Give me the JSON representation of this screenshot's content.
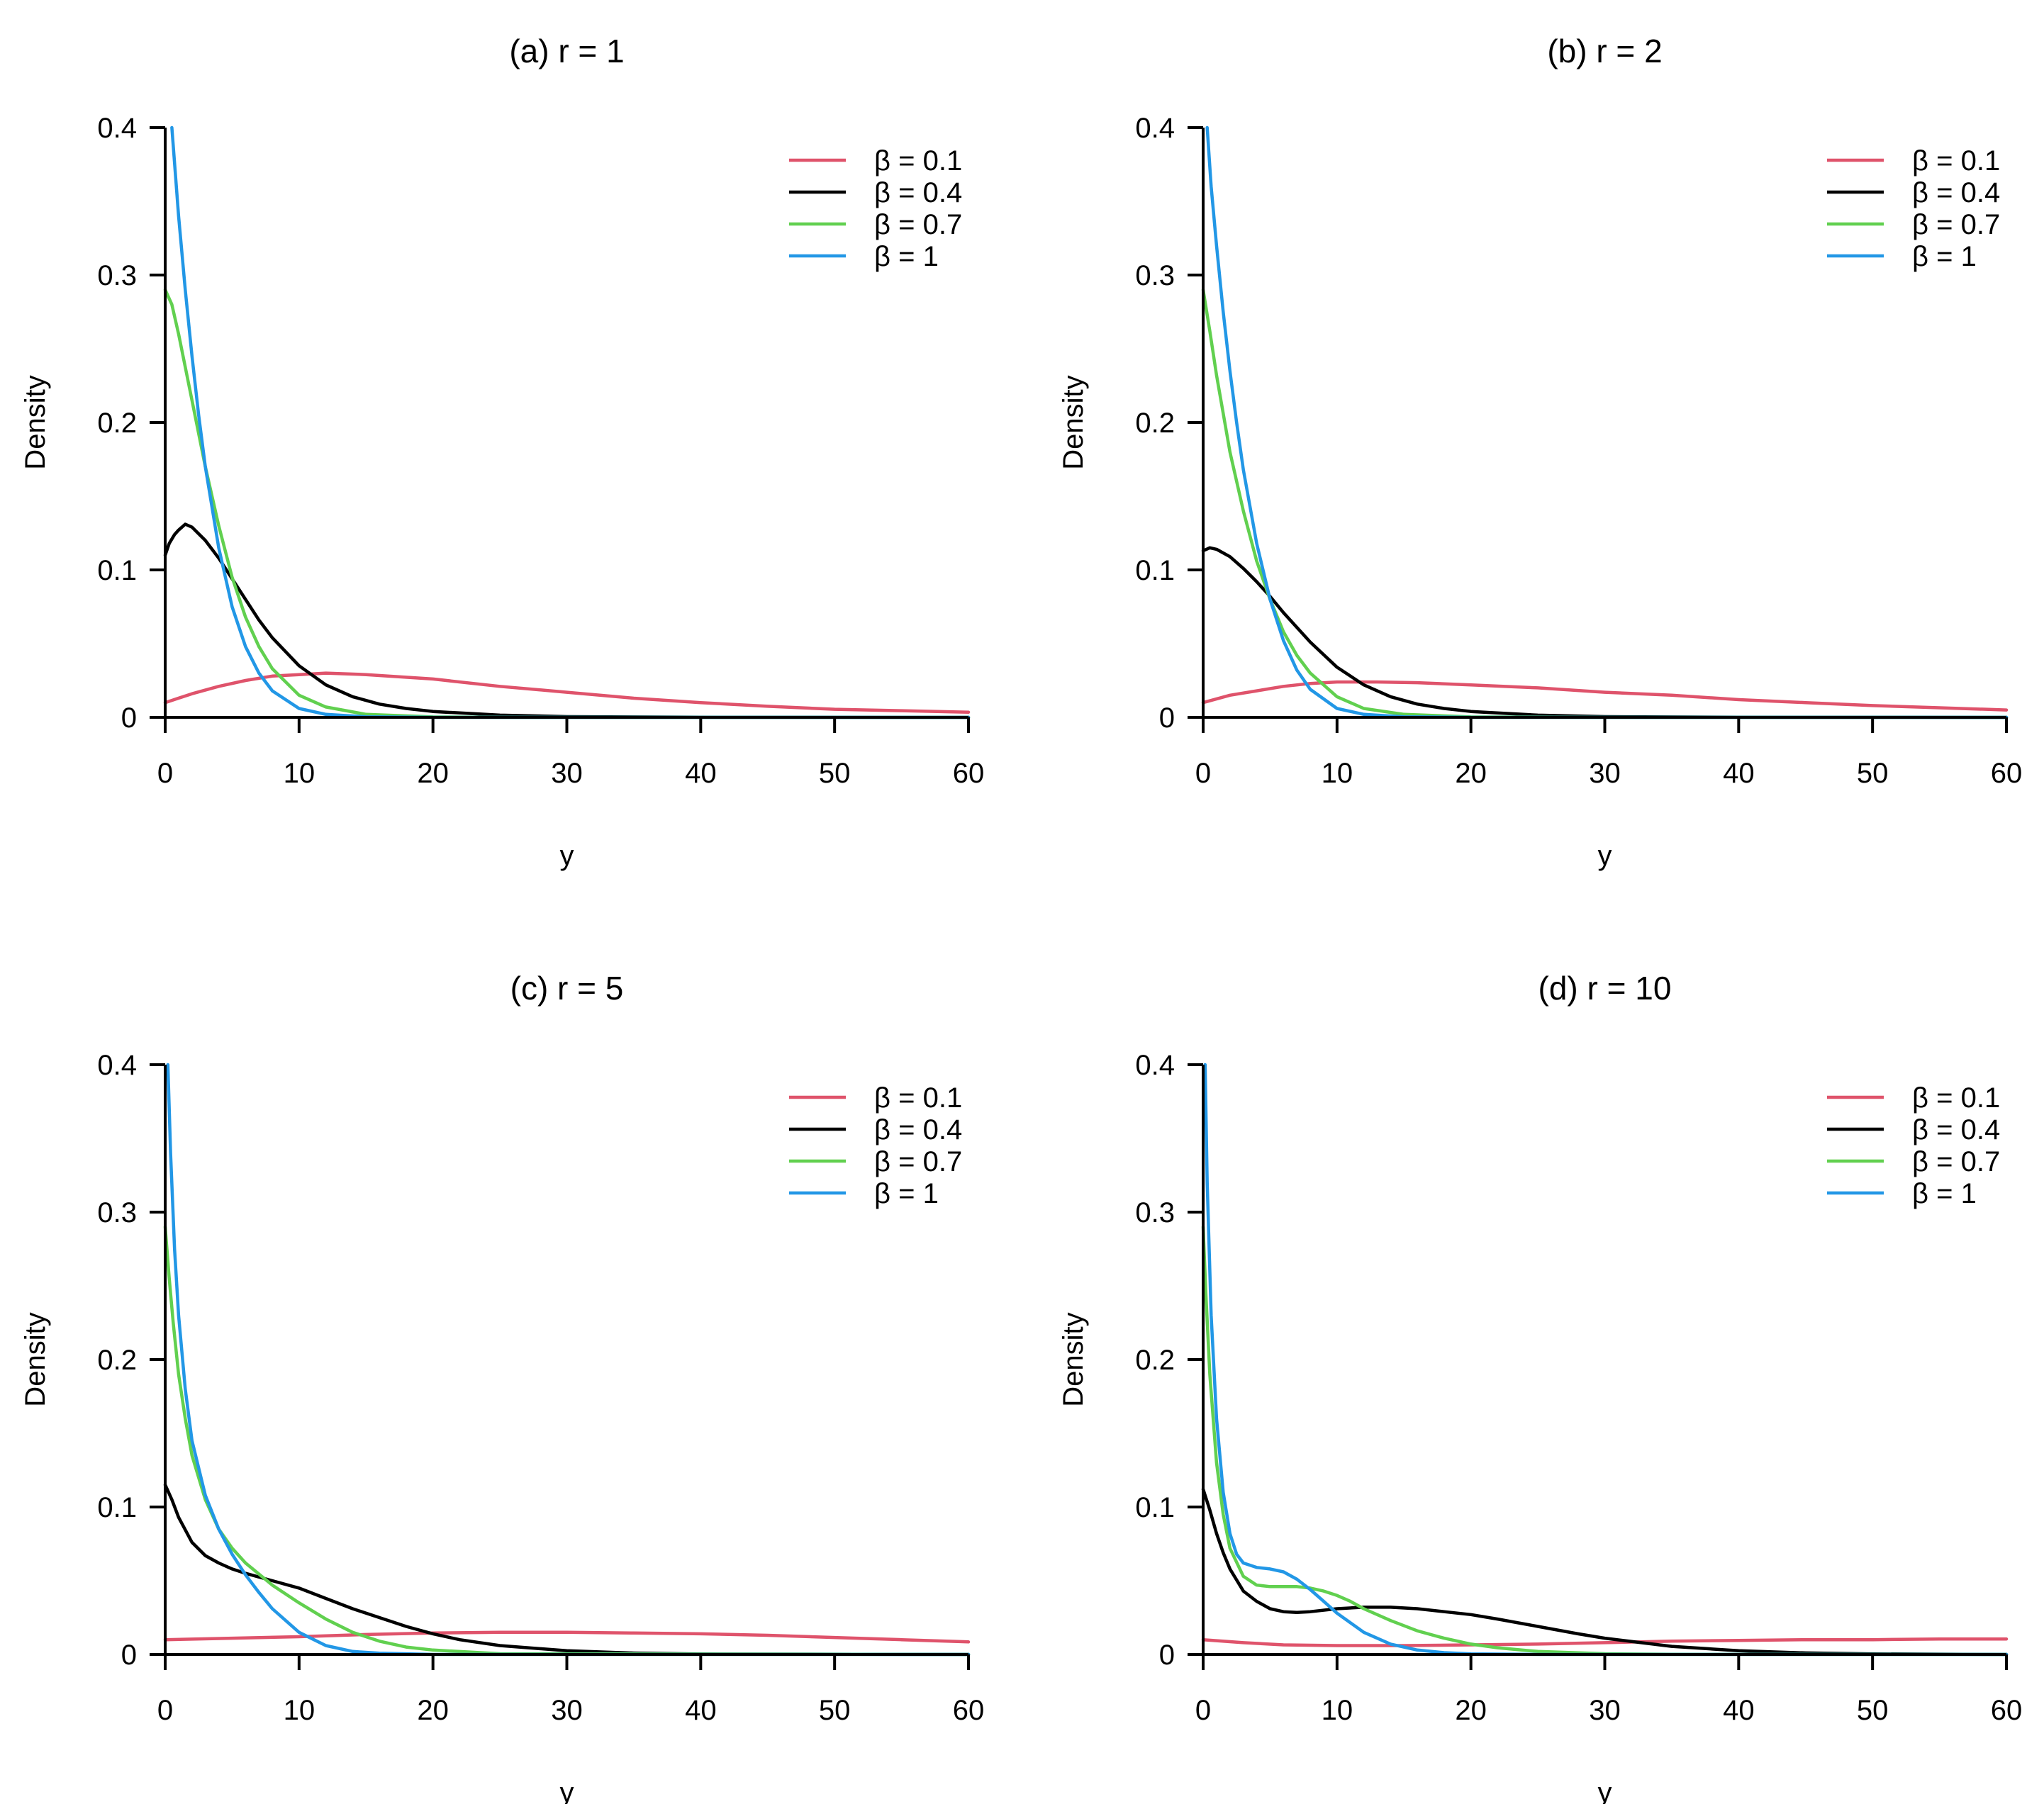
{
  "chart_data": [
    {
      "type": "line",
      "title": "(a) r = 1",
      "xlabel": "y",
      "ylabel": "Density",
      "xlim": [
        0,
        60
      ],
      "ylim": [
        0,
        0.4
      ],
      "xticks": [
        "0",
        "10",
        "20",
        "30",
        "40",
        "50",
        "60"
      ],
      "yticks": [
        "0",
        "0.1",
        "0.2",
        "0.3",
        "0.4"
      ],
      "legend_position": "top-right",
      "grid": false,
      "series": [
        {
          "name": "β = 0.1",
          "color": "#df536b",
          "x": [
            0,
            2,
            4,
            6,
            8,
            10,
            12,
            15,
            20,
            25,
            30,
            35,
            40,
            45,
            50,
            55,
            60
          ],
          "y": [
            0.01,
            0.016,
            0.021,
            0.025,
            0.028,
            0.029,
            0.03,
            0.029,
            0.026,
            0.021,
            0.017,
            0.013,
            0.01,
            0.0075,
            0.0055,
            0.0045,
            0.0035
          ]
        },
        {
          "name": "β = 0.4",
          "color": "#000000",
          "x": [
            0,
            0.3,
            0.7,
            1,
            1.5,
            2,
            3,
            4,
            5,
            6,
            7,
            8,
            10,
            12,
            14,
            16,
            18,
            20,
            25,
            30,
            40,
            60
          ],
          "y": [
            0.11,
            0.118,
            0.124,
            0.127,
            0.131,
            0.129,
            0.12,
            0.108,
            0.094,
            0.08,
            0.066,
            0.054,
            0.035,
            0.022,
            0.014,
            0.009,
            0.006,
            0.004,
            0.0015,
            0.0005,
            0.0001,
            0
          ]
        },
        {
          "name": "β = 0.7",
          "color": "#61d04f",
          "x": [
            0,
            0.5,
            1,
            2,
            3,
            4,
            5,
            6,
            7,
            8,
            10,
            12,
            15,
            20,
            25,
            30,
            60
          ],
          "y": [
            0.29,
            0.28,
            0.26,
            0.215,
            0.17,
            0.13,
            0.095,
            0.068,
            0.048,
            0.033,
            0.015,
            0.007,
            0.002,
            0.0003,
            5e-05,
            0,
            0
          ]
        },
        {
          "name": "β = 1",
          "color": "#2297e6",
          "x": [
            0.5,
            1,
            1.5,
            2,
            2.5,
            3,
            4,
            5,
            6,
            7,
            8,
            10,
            12,
            15,
            20,
            60
          ],
          "y": [
            0.4,
            0.34,
            0.29,
            0.245,
            0.205,
            0.17,
            0.115,
            0.075,
            0.048,
            0.03,
            0.018,
            0.006,
            0.002,
            0.0004,
            0,
            0
          ]
        }
      ]
    },
    {
      "type": "line",
      "title": "(b) r = 2",
      "xlabel": "y",
      "ylabel": "Density",
      "xlim": [
        0,
        60
      ],
      "ylim": [
        0,
        0.4
      ],
      "xticks": [
        "0",
        "10",
        "20",
        "30",
        "40",
        "50",
        "60"
      ],
      "yticks": [
        "0",
        "0.1",
        "0.2",
        "0.3",
        "0.4"
      ],
      "legend_position": "top-right",
      "grid": false,
      "series": [
        {
          "name": "β = 0.1",
          "color": "#df536b",
          "x": [
            0,
            2,
            4,
            6,
            8,
            10,
            13,
            16,
            20,
            25,
            30,
            35,
            40,
            45,
            50,
            55,
            60
          ],
          "y": [
            0.01,
            0.015,
            0.018,
            0.021,
            0.023,
            0.024,
            0.024,
            0.0235,
            0.022,
            0.02,
            0.017,
            0.015,
            0.012,
            0.01,
            0.008,
            0.0065,
            0.005
          ]
        },
        {
          "name": "β = 0.4",
          "color": "#000000",
          "x": [
            0,
            0.5,
            1,
            2,
            3,
            4,
            5,
            6,
            8,
            10,
            12,
            14,
            16,
            18,
            20,
            25,
            30,
            40,
            60
          ],
          "y": [
            0.113,
            0.115,
            0.114,
            0.109,
            0.101,
            0.092,
            0.082,
            0.071,
            0.051,
            0.034,
            0.022,
            0.014,
            0.009,
            0.006,
            0.004,
            0.0015,
            0.0005,
            0.0001,
            0
          ]
        },
        {
          "name": "β = 0.7",
          "color": "#61d04f",
          "x": [
            0,
            0.5,
            1,
            2,
            3,
            4,
            5,
            6,
            7,
            8,
            10,
            12,
            15,
            20,
            30,
            60
          ],
          "y": [
            0.29,
            0.262,
            0.232,
            0.18,
            0.14,
            0.106,
            0.08,
            0.058,
            0.042,
            0.03,
            0.014,
            0.006,
            0.002,
            0.0003,
            0,
            0
          ]
        },
        {
          "name": "β = 1",
          "color": "#2297e6",
          "x": [
            0.3,
            0.6,
            1,
            1.5,
            2,
            2.5,
            3,
            4,
            5,
            6,
            7,
            8,
            10,
            12,
            15,
            20,
            60
          ],
          "y": [
            0.4,
            0.36,
            0.32,
            0.275,
            0.235,
            0.2,
            0.168,
            0.118,
            0.08,
            0.052,
            0.032,
            0.019,
            0.006,
            0.002,
            0.0004,
            0,
            0
          ]
        }
      ]
    },
    {
      "type": "line",
      "title": "(c) r = 5",
      "xlabel": "y",
      "ylabel": "Density",
      "xlim": [
        0,
        60
      ],
      "ylim": [
        0,
        0.4
      ],
      "xticks": [
        "0",
        "10",
        "20",
        "30",
        "40",
        "50",
        "60"
      ],
      "yticks": [
        "0",
        "0.1",
        "0.2",
        "0.3",
        "0.4"
      ],
      "legend_position": "top-right",
      "grid": false,
      "series": [
        {
          "name": "β = 0.1",
          "color": "#df536b",
          "x": [
            0,
            5,
            10,
            15,
            20,
            25,
            30,
            35,
            40,
            45,
            50,
            55,
            60
          ],
          "y": [
            0.01,
            0.011,
            0.012,
            0.0135,
            0.0145,
            0.015,
            0.015,
            0.0145,
            0.014,
            0.013,
            0.0115,
            0.01,
            0.0085
          ]
        },
        {
          "name": "β = 0.4",
          "color": "#000000",
          "x": [
            0,
            0.5,
            1,
            2,
            3,
            4,
            5,
            6,
            8,
            10,
            12,
            14,
            16,
            18,
            20,
            22,
            25,
            30,
            35,
            40,
            60
          ],
          "y": [
            0.115,
            0.105,
            0.093,
            0.076,
            0.067,
            0.062,
            0.058,
            0.055,
            0.05,
            0.045,
            0.038,
            0.031,
            0.025,
            0.019,
            0.014,
            0.01,
            0.006,
            0.0025,
            0.0009,
            0.0003,
            0
          ]
        },
        {
          "name": "β = 0.7",
          "color": "#61d04f",
          "x": [
            0,
            0.3,
            0.6,
            1,
            1.5,
            2,
            3,
            4,
            5,
            6,
            8,
            10,
            12,
            14,
            16,
            18,
            20,
            25,
            60
          ],
          "y": [
            0.29,
            0.255,
            0.225,
            0.19,
            0.16,
            0.135,
            0.105,
            0.085,
            0.072,
            0.062,
            0.047,
            0.035,
            0.024,
            0.015,
            0.009,
            0.005,
            0.003,
            0.0005,
            0
          ]
        },
        {
          "name": "β = 1",
          "color": "#2297e6",
          "x": [
            0.2,
            0.4,
            0.7,
            1,
            1.5,
            2,
            3,
            4,
            5,
            6,
            7,
            8,
            10,
            12,
            14,
            16,
            20,
            60
          ],
          "y": [
            0.4,
            0.34,
            0.275,
            0.23,
            0.18,
            0.145,
            0.108,
            0.085,
            0.068,
            0.054,
            0.042,
            0.031,
            0.015,
            0.006,
            0.002,
            0.0008,
            0,
            0
          ]
        }
      ]
    },
    {
      "type": "line",
      "title": "(d) r = 10",
      "xlabel": "y",
      "ylabel": "Density",
      "xlim": [
        0,
        60
      ],
      "ylim": [
        0,
        0.4
      ],
      "xticks": [
        "0",
        "10",
        "20",
        "30",
        "40",
        "50",
        "60"
      ],
      "yticks": [
        "0",
        "0.1",
        "0.2",
        "0.3",
        "0.4"
      ],
      "legend_position": "top-right",
      "grid": false,
      "series": [
        {
          "name": "β = 0.1",
          "color": "#df536b",
          "x": [
            0,
            3,
            6,
            10,
            15,
            20,
            25,
            30,
            35,
            40,
            45,
            50,
            55,
            60
          ],
          "y": [
            0.01,
            0.008,
            0.0065,
            0.006,
            0.006,
            0.0065,
            0.007,
            0.008,
            0.009,
            0.0095,
            0.01,
            0.01,
            0.0105,
            0.0105
          ]
        },
        {
          "name": "β = 0.4",
          "color": "#000000",
          "x": [
            0,
            0.5,
            1,
            1.5,
            2,
            3,
            4,
            5,
            6,
            7,
            8,
            10,
            12,
            14,
            16,
            18,
            20,
            22,
            25,
            28,
            30,
            35,
            40,
            45,
            50,
            60
          ],
          "y": [
            0.112,
            0.098,
            0.082,
            0.069,
            0.058,
            0.043,
            0.036,
            0.031,
            0.029,
            0.0285,
            0.029,
            0.031,
            0.032,
            0.032,
            0.031,
            0.029,
            0.027,
            0.024,
            0.019,
            0.014,
            0.011,
            0.0055,
            0.0025,
            0.001,
            0.0004,
            0
          ]
        },
        {
          "name": "β = 0.7",
          "color": "#61d04f",
          "x": [
            0,
            0.2,
            0.5,
            1,
            1.5,
            2,
            3,
            4,
            5,
            6,
            7,
            8,
            9,
            10,
            11,
            12,
            14,
            16,
            18,
            20,
            22,
            25,
            30,
            35,
            60
          ],
          "y": [
            0.29,
            0.245,
            0.19,
            0.13,
            0.095,
            0.072,
            0.053,
            0.047,
            0.046,
            0.046,
            0.046,
            0.045,
            0.043,
            0.04,
            0.036,
            0.031,
            0.023,
            0.016,
            0.011,
            0.007,
            0.0045,
            0.002,
            0.0005,
            0.0001,
            0
          ]
        },
        {
          "name": "β = 1",
          "color": "#2297e6",
          "x": [
            0.15,
            0.3,
            0.6,
            1,
            1.5,
            2,
            2.5,
            3,
            4,
            5,
            6,
            7,
            8,
            9,
            10,
            12,
            14,
            16,
            18,
            20,
            25,
            60
          ],
          "y": [
            0.4,
            0.32,
            0.23,
            0.16,
            0.11,
            0.082,
            0.068,
            0.062,
            0.059,
            0.058,
            0.056,
            0.051,
            0.044,
            0.036,
            0.028,
            0.015,
            0.007,
            0.003,
            0.0012,
            0.0004,
            0,
            0
          ]
        }
      ]
    }
  ]
}
